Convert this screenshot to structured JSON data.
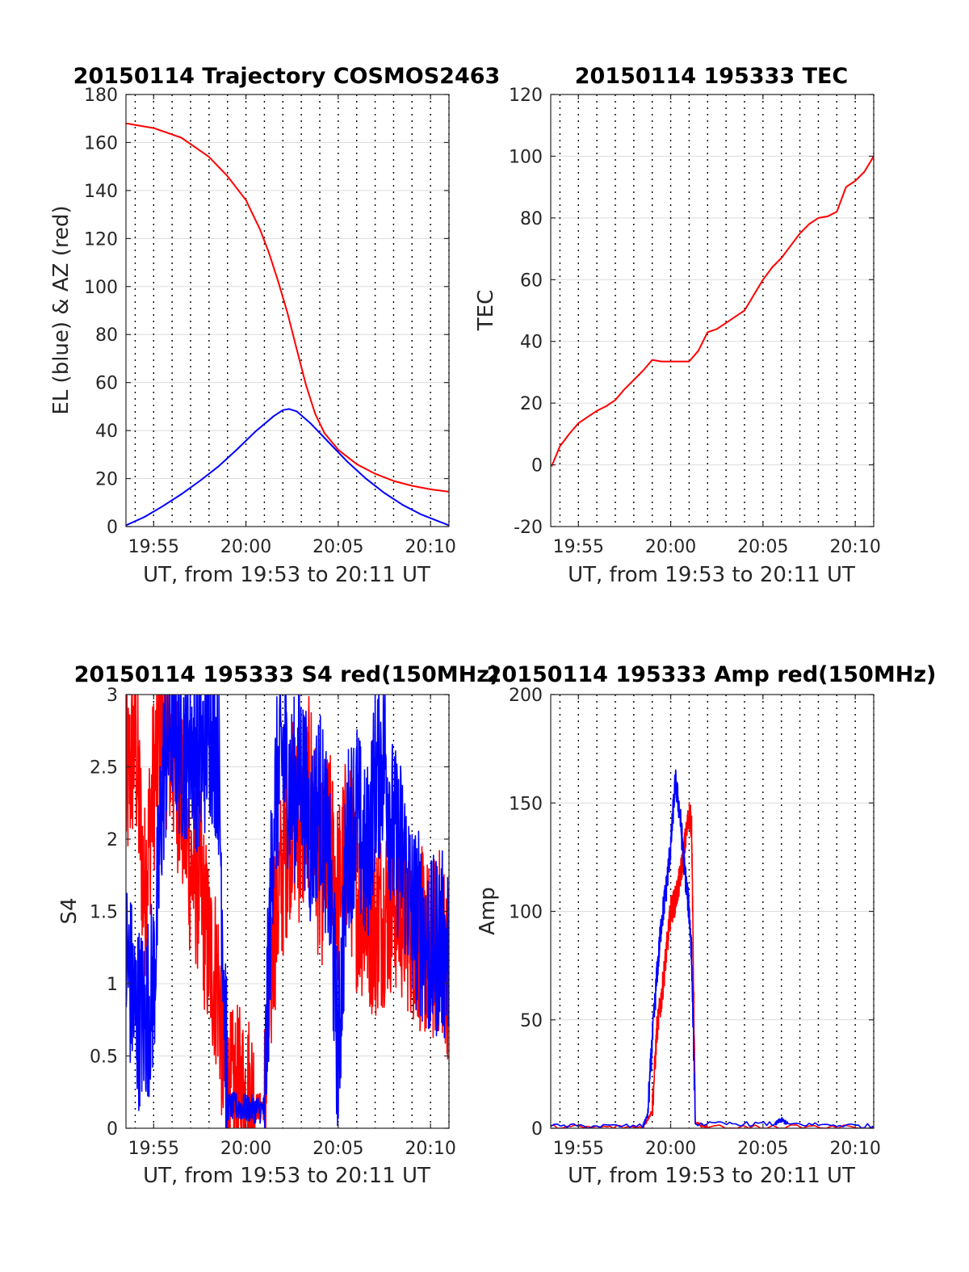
{
  "figure": {
    "background": "#ffffff",
    "grid_color": "#dcdcdc",
    "vline_color": "#000000"
  },
  "chart_data": [
    {
      "id": "trajectory",
      "type": "line",
      "title": "20150114 Trajectory COSMOS2463",
      "xlabel": "UT, from 19:53 to 20:11 UT",
      "ylabel": "EL (blue) & AZ (red)",
      "x_unit": "minutes after 19:53",
      "xlim": [
        "19:53:30",
        "20:11:00"
      ],
      "ylim": [
        0,
        180
      ],
      "yticks": [
        0,
        20,
        40,
        60,
        80,
        100,
        120,
        140,
        160,
        180
      ],
      "xticks": [
        "19:55",
        "20:00",
        "20:05",
        "20:10"
      ],
      "x_tick_times": [
        "19:55",
        "20:00",
        "20:05",
        "20:10"
      ],
      "dotted_vlines_every_minute": true,
      "grid": true,
      "series": [
        {
          "color": "#ff0000",
          "x": [
            "19:53:30",
            "19:55:00",
            "19:56:30",
            "19:58:00",
            "19:59:00",
            "20:00:00",
            "20:00:45",
            "20:01:15",
            "20:01:45",
            "20:02:15",
            "20:02:45",
            "20:03:15",
            "20:03:45",
            "20:04:15",
            "20:05:00",
            "20:06:00",
            "20:07:00",
            "20:08:00",
            "20:09:00",
            "20:10:00",
            "20:11:00"
          ],
          "values": [
            168,
            166,
            162,
            154,
            146,
            136,
            124,
            114,
            102,
            89,
            74,
            59,
            47,
            39,
            32,
            26,
            22,
            19,
            17,
            15.5,
            14.5
          ]
        },
        {
          "color": "#0000ff",
          "x": [
            "19:53:30",
            "19:54:30",
            "19:55:30",
            "19:56:30",
            "19:57:30",
            "19:58:30",
            "19:59:30",
            "20:00:30",
            "20:01:30",
            "20:02:00",
            "20:02:20",
            "20:02:45",
            "20:03:30",
            "20:04:30",
            "20:05:30",
            "20:06:30",
            "20:07:30",
            "20:08:30",
            "20:09:30",
            "20:10:30",
            "20:11:00"
          ],
          "values": [
            0.5,
            4,
            8.5,
            13.5,
            19,
            25,
            32,
            39.5,
            46,
            48.5,
            49,
            48,
            43,
            35,
            27,
            20,
            14,
            9,
            5,
            2,
            0.5
          ]
        }
      ]
    },
    {
      "id": "tec",
      "type": "line",
      "title": "20150114 195333 TEC",
      "xlabel": "UT, from 19:53 to 20:11 UT",
      "ylabel": "TEC",
      "x_unit": "minutes after 19:53",
      "xlim": [
        "19:53:30",
        "20:11:00"
      ],
      "ylim": [
        -20,
        120
      ],
      "yticks": [
        -20,
        0,
        20,
        40,
        60,
        80,
        100,
        120
      ],
      "xticks": [
        "19:55",
        "20:00",
        "20:05",
        "20:10"
      ],
      "x_tick_times": [
        "19:55",
        "20:00",
        "20:05",
        "20:10"
      ],
      "dotted_vlines_every_minute": true,
      "grid": true,
      "series": [
        {
          "color": "#ff0000",
          "x": [
            "19:53:33",
            "19:54:00",
            "19:54:30",
            "19:55:00",
            "19:55:30",
            "19:56:00",
            "19:56:30",
            "19:57:00",
            "19:57:30",
            "19:58:00",
            "19:58:30",
            "19:59:00",
            "19:59:30",
            "20:00:00",
            "20:00:30",
            "20:01:00",
            "20:01:30",
            "20:02:00",
            "20:02:30",
            "20:03:00",
            "20:03:30",
            "20:04:00",
            "20:04:30",
            "20:05:00",
            "20:05:30",
            "20:06:00",
            "20:06:30",
            "20:07:00",
            "20:07:30",
            "20:08:00",
            "20:08:30",
            "20:09:00",
            "20:09:30",
            "20:10:00",
            "20:10:30",
            "20:11:00"
          ],
          "values": [
            -0.5,
            6,
            10,
            13.5,
            15.5,
            17.5,
            19,
            21,
            24.5,
            27.5,
            30.5,
            34,
            33.5,
            33.5,
            33.5,
            33.5,
            37,
            43,
            44,
            46,
            48,
            50,
            55,
            60,
            64,
            67,
            71,
            75,
            78,
            80,
            80.5,
            82,
            90,
            92,
            95,
            100
          ]
        }
      ]
    },
    {
      "id": "s4",
      "type": "line",
      "title": "20150114 195333 S4 red(150MHz)",
      "xlabel": "UT, from 19:53 to 20:11 UT",
      "ylabel": "S4",
      "x_unit": "minutes after 19:53",
      "xlim": [
        "19:53:30",
        "20:11:00"
      ],
      "ylim": [
        0,
        3
      ],
      "yticks": [
        0,
        0.5,
        1,
        1.5,
        2,
        2.5,
        3
      ],
      "xticks": [
        "19:55",
        "20:00",
        "20:05",
        "20:10"
      ],
      "x_tick_times": [
        "19:55",
        "20:00",
        "20:05",
        "20:10"
      ],
      "dotted_vlines_every_minute": true,
      "grid": true,
      "noisy_rendering": true,
      "series": [
        {
          "color": "#ff0000",
          "x": [
            "19:53:30",
            "19:54:00",
            "19:54:30",
            "19:55:00",
            "19:55:30",
            "19:56:00",
            "19:56:30",
            "19:57:00",
            "19:57:30",
            "19:58:00",
            "19:58:30",
            "19:59:00",
            "19:59:30",
            "20:00:00",
            "20:00:30",
            "20:01:00",
            "20:01:30",
            "20:02:00",
            "20:02:30",
            "20:03:00",
            "20:03:30",
            "20:04:00",
            "20:04:30",
            "20:05:00",
            "20:05:30",
            "20:06:00",
            "20:06:30",
            "20:07:00",
            "20:07:30",
            "20:08:00",
            "20:08:30",
            "20:09:00",
            "20:09:30",
            "20:10:00",
            "20:10:30",
            "20:11:00"
          ],
          "values": [
            2.3,
            2.7,
            1.6,
            2.4,
            2.8,
            2.6,
            2.3,
            1.8,
            1.7,
            1.2,
            1.0,
            0.15,
            0.2,
            0.2,
            0.15,
            0.15,
            1.4,
            1.8,
            2.2,
            2.0,
            2.4,
            1.7,
            2.0,
            1.6,
            2.0,
            1.6,
            1.5,
            1.4,
            1.5,
            1.6,
            1.5,
            1.4,
            1.3,
            1.2,
            1.3,
            1.1
          ]
        },
        {
          "color": "#0000ff",
          "x": [
            "19:53:30",
            "19:54:00",
            "19:54:30",
            "19:55:00",
            "19:55:30",
            "19:56:00",
            "19:56:30",
            "19:57:00",
            "19:57:30",
            "19:58:00",
            "19:58:30",
            "19:59:00",
            "19:59:30",
            "20:00:00",
            "20:00:30",
            "20:01:00",
            "20:01:30",
            "20:02:00",
            "20:02:30",
            "20:03:00",
            "20:03:30",
            "20:04:00",
            "20:04:30",
            "20:05:00",
            "20:05:30",
            "20:06:00",
            "20:06:30",
            "20:07:00",
            "20:07:30",
            "20:08:00",
            "20:08:30",
            "20:09:00",
            "20:09:30",
            "20:10:00",
            "20:10:30",
            "20:11:00"
          ],
          "values": [
            1.2,
            0.8,
            0.75,
            1.0,
            2.4,
            2.9,
            2.6,
            2.7,
            2.5,
            2.8,
            2.6,
            0.15,
            0.15,
            0.14,
            0.13,
            0.13,
            2.2,
            2.6,
            2.3,
            2.5,
            2.0,
            2.3,
            1.8,
            0.5,
            2.0,
            2.2,
            1.8,
            2.4,
            2.6,
            2.0,
            1.9,
            1.5,
            1.4,
            1.2,
            1.3,
            1.2
          ]
        }
      ]
    },
    {
      "id": "amp",
      "type": "line",
      "title": "20150114 195333 Amp red(150MHz)",
      "xlabel": "UT, from 19:53 to 20:11 UT",
      "ylabel": "Amp",
      "x_unit": "minutes after 19:53",
      "xlim": [
        "19:53:30",
        "20:11:00"
      ],
      "ylim": [
        0,
        200
      ],
      "yticks": [
        0,
        50,
        100,
        150,
        200
      ],
      "xticks": [
        "19:55",
        "20:00",
        "20:05",
        "20:10"
      ],
      "x_tick_times": [
        "19:55",
        "20:00",
        "20:05",
        "20:10"
      ],
      "dotted_vlines_every_minute": true,
      "grid": true,
      "noisy_rendering": true,
      "series": [
        {
          "color": "#ff0000",
          "x": [
            "19:53:30",
            "19:58:30",
            "19:59:00",
            "19:59:15",
            "19:59:30",
            "19:59:45",
            "20:00:00",
            "20:00:15",
            "20:00:30",
            "20:00:45",
            "20:01:00",
            "20:01:08",
            "20:01:20",
            "20:02:00",
            "20:11:00"
          ],
          "values": [
            0.5,
            0.5,
            8,
            45,
            60,
            80,
            100,
            105,
            115,
            130,
            145,
            140,
            2,
            0.5,
            0.5
          ]
        },
        {
          "color": "#0000ff",
          "x": [
            "19:53:30",
            "19:58:30",
            "19:58:45",
            "19:59:00",
            "19:59:15",
            "19:59:30",
            "19:59:45",
            "20:00:00",
            "20:00:15",
            "20:00:30",
            "20:00:45",
            "20:01:00",
            "20:01:08",
            "20:01:20",
            "20:05:40",
            "20:06:00",
            "20:06:20",
            "20:11:00"
          ],
          "values": [
            1,
            1,
            6,
            40,
            70,
            95,
            110,
            130,
            160,
            145,
            120,
            100,
            80,
            2,
            2,
            4,
            2,
            1
          ]
        }
      ]
    }
  ]
}
